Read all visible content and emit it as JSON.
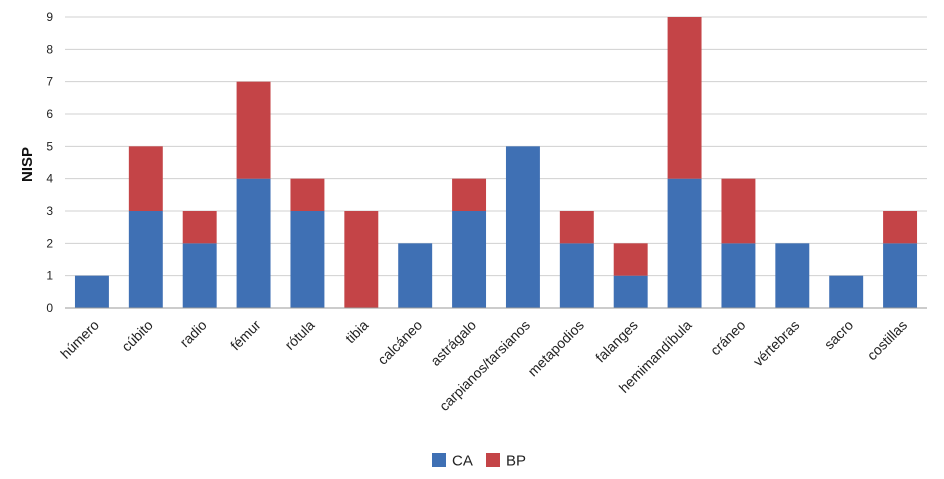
{
  "chart_data": {
    "type": "bar",
    "stacked": true,
    "title": "",
    "xlabel": "",
    "ylabel": "NISP",
    "ylim": [
      0,
      9
    ],
    "yticks": [
      0,
      1,
      2,
      3,
      4,
      5,
      6,
      7,
      8,
      9
    ],
    "grid": true,
    "legend_position": "bottom",
    "categories": [
      "húmero",
      "cúbito",
      "radio",
      "fémur",
      "rótula",
      "tibia",
      "calcáneo",
      "astrágalo",
      "carpianos/tarsianos",
      "metapodios",
      "falanges",
      "hemimandíbula",
      "cráneo",
      "vértebras",
      "sacro",
      "costillas"
    ],
    "series": [
      {
        "name": "CA",
        "color": "#3f70b4",
        "values": [
          1,
          3,
          2,
          4,
          3,
          0,
          2,
          3,
          5,
          2,
          1,
          4,
          2,
          2,
          1,
          2
        ]
      },
      {
        "name": "BP",
        "color": "#c44447",
        "values": [
          0,
          2,
          1,
          3,
          1,
          3,
          0,
          1,
          0,
          1,
          1,
          5,
          2,
          0,
          0,
          1
        ]
      }
    ]
  }
}
